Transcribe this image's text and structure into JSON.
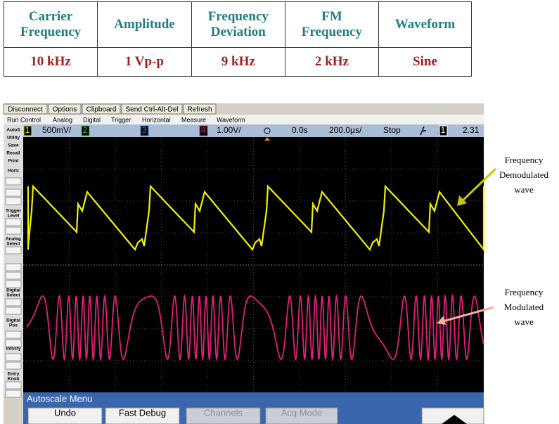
{
  "table": {
    "headers": [
      [
        "Carrier",
        "Frequency"
      ],
      [
        "Amplitude"
      ],
      [
        "Frequency",
        "Deviation"
      ],
      [
        "FM",
        "Frequency"
      ],
      [
        "Waveform"
      ]
    ],
    "rows": [
      [
        "10 kHz",
        "1 Vp-p",
        "9 kHz",
        "2 kHz",
        "Sine"
      ]
    ]
  },
  "toolbar": {
    "buttons": [
      "Disconnect",
      "Options",
      "Clipboard",
      "Send Ctrl-Alt-Del",
      "Refresh"
    ]
  },
  "menu": {
    "items": [
      "Run Control",
      "Analog",
      "Digital",
      "Trigger",
      "Horizontal",
      "Measure",
      "Waveform"
    ]
  },
  "status": {
    "items": [
      "1",
      "500mV/",
      "2",
      "3",
      "4",
      "1.00V/",
      "0.0s",
      "200.0µs/",
      "Stop",
      "1",
      "2.31"
    ]
  },
  "side_panel": {
    "labels": [
      [
        "AutoS"
      ],
      [
        "Utility"
      ],
      [
        "Save"
      ],
      [
        "Recall"
      ],
      [
        "Print"
      ],
      [
        "Horiz"
      ],
      [
        "Trigger",
        "Level"
      ],
      [
        "Analog",
        "Select"
      ],
      [
        "Digital",
        "Select"
      ],
      [
        "Digital",
        "Pos"
      ],
      [
        "Intnsty"
      ],
      [
        "Entry",
        "Knob"
      ]
    ]
  },
  "softkeys": {
    "title": "Autoscale Menu",
    "buttons": [
      "Undo",
      "Fast Debug",
      "Channels",
      "Acq Mode"
    ]
  },
  "annotations": [
    [
      "Frequency",
      "Demodulated",
      "wave"
    ],
    [
      "Frequency",
      "Modulated",
      "wave"
    ]
  ]
}
